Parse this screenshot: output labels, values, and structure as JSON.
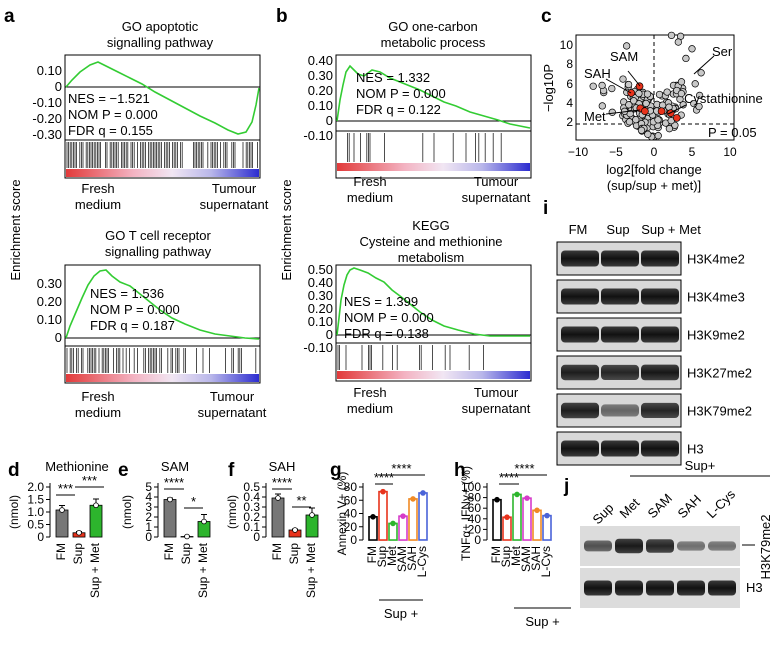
{
  "colors": {
    "gsea_line": "#33cc33",
    "grey_bar": "#777777",
    "red": "#e8331c",
    "green": "#2db52d",
    "magenta": "#d63bc9",
    "orange": "#f08a24",
    "blue": "#4a63d8",
    "heat_red": "#e23a3a",
    "heat_blue": "#2c2cd0"
  },
  "panels": {
    "a": "a",
    "b": "b",
    "c": "c",
    "d": "d",
    "e": "e",
    "f": "f",
    "g": "g",
    "h": "h",
    "i": "i",
    "j": "j"
  },
  "gsea_ylabel": "Enrichment score",
  "gsea_xlabels": {
    "left": [
      "Fresh",
      "medium"
    ],
    "right": [
      "Tumour",
      "supernatant"
    ]
  },
  "gsea": [
    {
      "id": "a_top",
      "title": [
        "GO apoptotic",
        "signalling pathway"
      ],
      "ticks": [
        "0.10",
        "0",
        "-0.10",
        "-0.20",
        "-0.30"
      ],
      "stats": [
        "NES = −1.521",
        "NOM P = 0.000",
        "FDR q = 0.155"
      ]
    },
    {
      "id": "a_bot",
      "title": [
        "GO T cell receptor",
        "signalling pathway"
      ],
      "ticks": [
        "0.30",
        "0.20",
        "0.10",
        "0"
      ],
      "stats": [
        "NES = 1.536",
        "NOM P = 0.000",
        "FDR q = 0.187"
      ]
    },
    {
      "id": "b_top",
      "title": [
        "GO one-carbon",
        "metabolic process"
      ],
      "ticks": [
        "0.40",
        "0.30",
        "0.20",
        "0.10",
        "0",
        "-0.10"
      ],
      "stats": [
        "NES = 1.332",
        "NOM P = 0.000",
        "FDR q = 0.122"
      ]
    },
    {
      "id": "b_bot",
      "title": [
        "KEGG",
        "Cysteine and methionine",
        "metabolism"
      ],
      "ticks": [
        "0.50",
        "0.40",
        "0.30",
        "0.20",
        "0.10",
        "0",
        "-0.10"
      ],
      "stats": [
        "NES = 1.399",
        "NOM P = 0.000",
        "FDR q = 0.138"
      ]
    }
  ],
  "volcano": {
    "ylabel": "−log10P",
    "xlabel": [
      "log2[fold change",
      "(sup/sup + met)]"
    ],
    "xticks": [
      "−10",
      "−5",
      "0",
      "5",
      "10"
    ],
    "yticks": [
      "10",
      "8",
      "6",
      "4",
      "2"
    ],
    "threshold_label": "P = 0.05",
    "labels": {
      "sam": "SAM",
      "sah": "SAH",
      "ser": "Ser",
      "met": "Met",
      "cys": "Cystathionine"
    }
  },
  "western_i": {
    "lanes": [
      "FM",
      "Sup",
      "Sup + Met"
    ],
    "blots": [
      "H3K4me2",
      "H3K4me3",
      "H3K9me2",
      "H3K27me2",
      "H3K79me2",
      "H3"
    ]
  },
  "western_j": {
    "lanes": [
      "Sup",
      "Met",
      "SAM",
      "SAH",
      "L-Cys"
    ],
    "group": "Sup+",
    "blots": [
      "H3K79me2",
      "H3"
    ]
  },
  "bars": {
    "d": {
      "title": "Methionine",
      "ylabel": "(nmol)",
      "yticks": [
        "2.0",
        "1.5",
        "1.0",
        "0.5",
        "0"
      ],
      "ylim": [
        0,
        2.0
      ],
      "categories": [
        "FM",
        "Sup",
        "Sup + Met"
      ],
      "values": [
        1.08,
        0.17,
        1.27
      ],
      "errors": [
        0.18,
        0.05,
        0.25
      ],
      "sig": [
        "***",
        "***"
      ]
    },
    "e": {
      "title": "SAM",
      "ylabel": "(nmol)",
      "yticks": [
        "5",
        "4",
        "3",
        "2",
        "1",
        "0"
      ],
      "ylim": [
        0,
        5
      ],
      "categories": [
        "FM",
        "Sup",
        "Sup + Met"
      ],
      "values": [
        3.75,
        0.05,
        1.55
      ],
      "errors": [
        0.15,
        0.03,
        0.7
      ],
      "sig": [
        "****",
        "*"
      ]
    },
    "f": {
      "title": "SAH",
      "ylabel": "(nmol)",
      "yticks": [
        "0.5",
        "0.4",
        "0.3",
        "0.2",
        "0.1",
        "0"
      ],
      "ylim": [
        0,
        0.5
      ],
      "categories": [
        "FM",
        "Sup",
        "Sup + Met"
      ],
      "values": [
        0.39,
        0.07,
        0.22
      ],
      "errors": [
        0.04,
        0.01,
        0.07
      ],
      "sig": [
        "****",
        "**"
      ]
    },
    "g": {
      "ylabel": "Annexin V+ (%)",
      "yticks": [
        "80",
        "60",
        "40",
        "20",
        "0"
      ],
      "ylim": [
        0,
        80
      ],
      "categories": [
        "FM",
        "Sup",
        "Met",
        "SAM",
        "SAH",
        "L-Cys"
      ],
      "values": [
        35,
        73,
        25,
        36,
        62,
        71
      ],
      "sig": [
        "****",
        "****"
      ],
      "group": "Sup +"
    },
    "h": {
      "ylabel": "TNFα+ IFNγ+ (%)",
      "yticks": [
        "100",
        "80",
        "60",
        "40",
        "20",
        "0"
      ],
      "ylim": [
        0,
        100
      ],
      "categories": [
        "FM",
        "Sup",
        "Met",
        "SAM",
        "SAH",
        "L-Cys"
      ],
      "values": [
        76,
        43,
        86,
        79,
        56,
        46
      ],
      "sig": [
        "****",
        "****"
      ],
      "group": "Sup +"
    }
  }
}
